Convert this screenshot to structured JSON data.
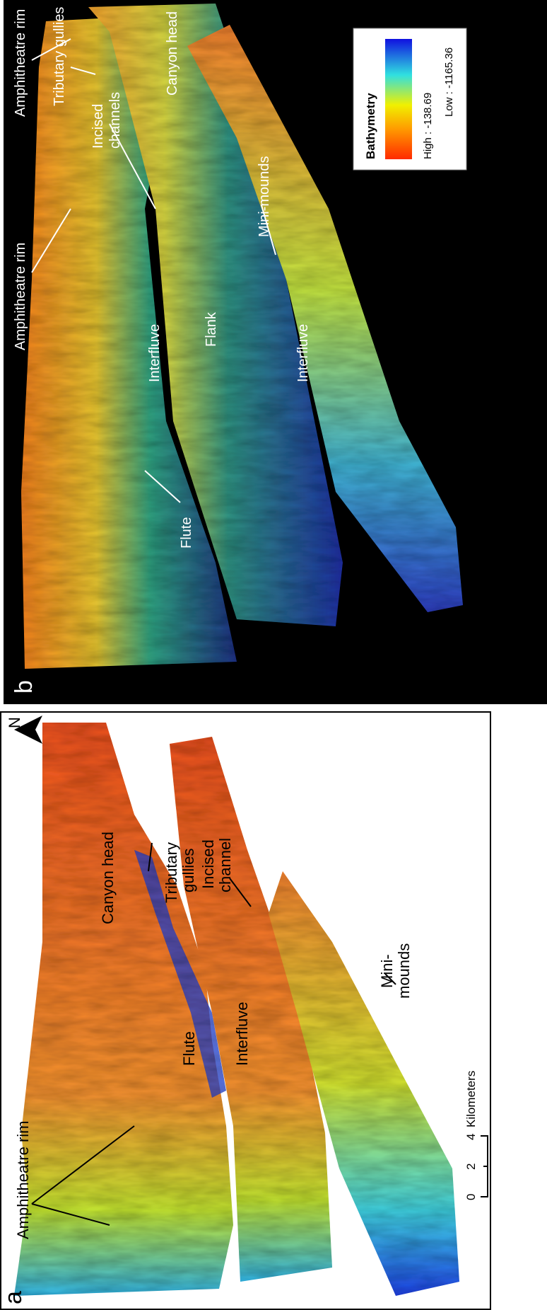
{
  "panel_a": {
    "letter": "a",
    "labels": {
      "amphitheatre_rim": "Amphitheatre rim",
      "flute": "Flute",
      "interfluve": "Interfluve",
      "canyon_head": "Canyon head",
      "tributary_gullies": [
        "Tributary",
        "gullies"
      ],
      "incised_channel": [
        "Incised",
        "channel"
      ],
      "mini_mounds": [
        "Mini-",
        "mounds"
      ]
    },
    "north": "N",
    "scale_bar": {
      "ticks": [
        "0",
        "2",
        "4"
      ],
      "unit": "Kilometers"
    }
  },
  "panel_b": {
    "letter": "b",
    "labels": {
      "amphitheatre_rim_1": "Amphitheatre rim",
      "amphitheatre_rim_2": "Amphitheatre rim",
      "tributary_gullies": "Tributary gullies",
      "incised_channels": [
        "Incised",
        "channels"
      ],
      "canyon_head": "Canyon head",
      "interfluve_1": "Interfluve",
      "flank": "Flank",
      "flute": "Flute",
      "mini_mounds": "Mini-mounds",
      "interfluve_2": "Interfluve"
    },
    "legend": {
      "title": "Bathymetry",
      "high": "High : -138.69",
      "low": "Low : -1165.36"
    }
  }
}
